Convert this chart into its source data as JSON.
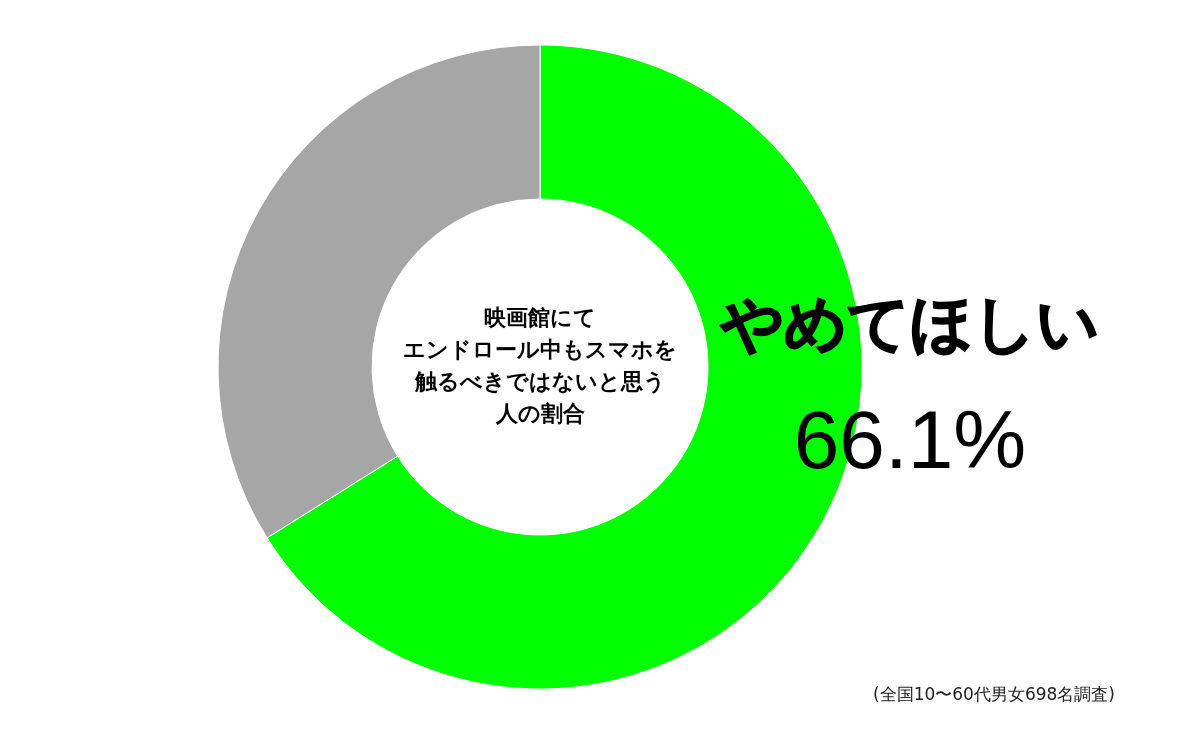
{
  "chart_data": {
    "type": "donut",
    "title": "映画館にてエンドロール中もスマホを触るべきではないと思う人の割合",
    "categories": [
      "やめてほしい",
      null
    ],
    "values": [
      66.1,
      33.9
    ],
    "colors": [
      "#00ff00",
      "#a6a6a6"
    ],
    "value_labels": [
      "66.1%",
      null
    ],
    "annotations": [
      "(全国10〜60代男女698名調査)"
    ]
  }
}
